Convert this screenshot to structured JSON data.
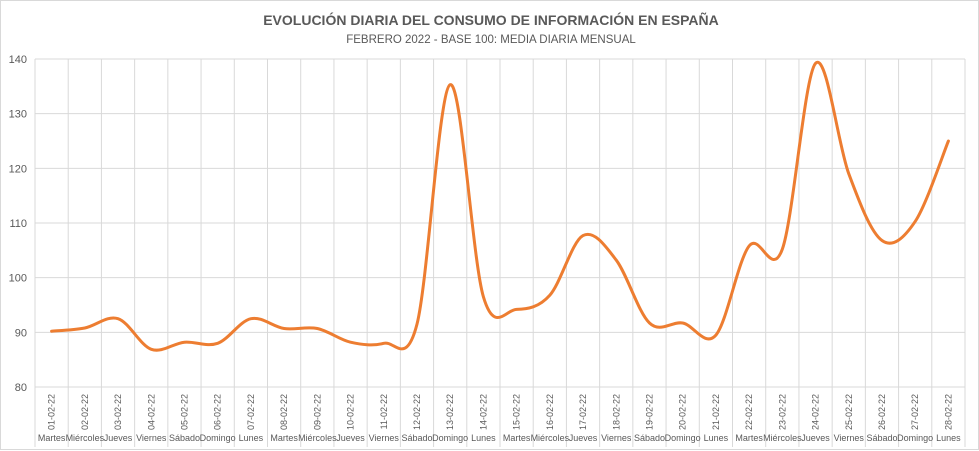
{
  "chart_data": {
    "type": "line",
    "title": "EVOLUCIÓN DIARIA DEL CONSUMO DE INFORMACIÓN EN ESPAÑA",
    "subtitle": "FEBRERO 2022 - BASE 100: MEDIA DIARIA MENSUAL",
    "xlabel": "",
    "ylabel": "",
    "ylim": [
      80,
      140
    ],
    "yticks": [
      80,
      90,
      100,
      110,
      120,
      130,
      140
    ],
    "grid": true,
    "categories": [
      "01-02-22",
      "02-02-22",
      "03-02-22",
      "04-02-22",
      "05-02-22",
      "06-02-22",
      "07-02-22",
      "08-02-22",
      "09-02-22",
      "10-02-22",
      "11-02-22",
      "12-02-22",
      "13-02-22",
      "14-02-22",
      "15-02-22",
      "16-02-22",
      "17-02-22",
      "18-02-22",
      "19-02-22",
      "20-02-22",
      "21-02-22",
      "22-02-22",
      "23-02-22",
      "24-02-22",
      "25-02-22",
      "26-02-22",
      "27-02-22",
      "28-02-22"
    ],
    "weekdays": [
      "Martes",
      "Miércoles",
      "Jueves",
      "Viernes",
      "Sábado",
      "Domingo",
      "Lunes",
      "Martes",
      "Miércoles",
      "Jueves",
      "Viernes",
      "Sábado",
      "Domingo",
      "Lunes",
      "Martes",
      "Miércoles",
      "Jueves",
      "Viernes",
      "Sábado",
      "Domingo",
      "Lunes",
      "Martes",
      "Miércoles",
      "Jueves",
      "Viernes",
      "Sábado",
      "Domingo",
      "Lunes"
    ],
    "series": [
      {
        "color": "#ED7D31",
        "values": [
          90.2,
          90.8,
          92.5,
          86.9,
          88.2,
          88.0,
          92.5,
          90.7,
          90.7,
          88.2,
          88.0,
          91.5,
          135.3,
          96.5,
          94.2,
          96.8,
          107.7,
          103.2,
          91.7,
          91.7,
          89.5,
          105.8,
          105.2,
          139.2,
          119.0,
          106.8,
          110.3,
          125.0
        ]
      }
    ]
  }
}
